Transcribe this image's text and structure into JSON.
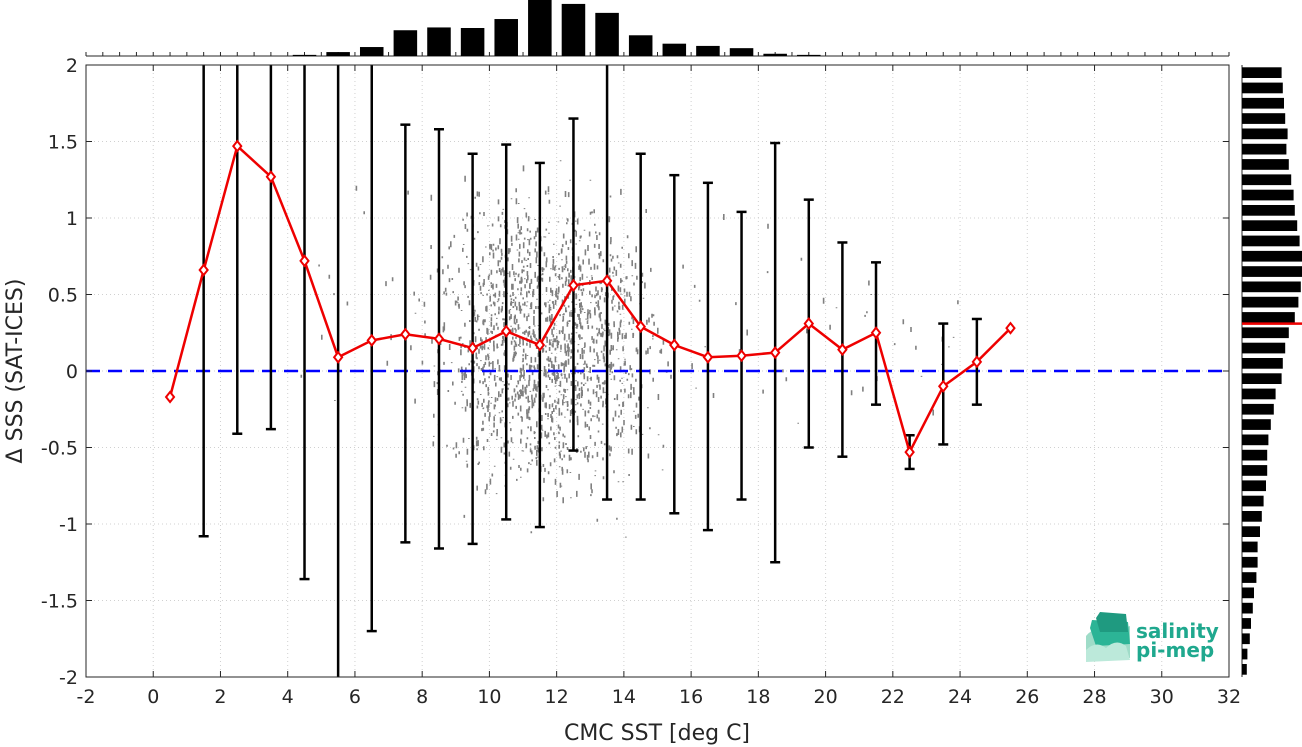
{
  "chart_data": {
    "type": "scatter",
    "xlabel": "CMC SST [deg C]",
    "ylabel": "Δ SSS (SAT-ICES)",
    "xlim": [
      -2,
      32
    ],
    "ylim": [
      -2,
      2
    ],
    "x_ticks": [
      -2,
      0,
      2,
      4,
      6,
      8,
      10,
      12,
      14,
      16,
      18,
      20,
      22,
      24,
      26,
      28,
      30,
      32
    ],
    "y_ticks": [
      -2,
      -1.5,
      -1,
      -0.5,
      0,
      0.5,
      1,
      1.5,
      2
    ],
    "grid": true,
    "reference_line": {
      "y": 0,
      "color": "#0000ff",
      "style": "dashed"
    },
    "series": [
      {
        "kind": "binned-mean-with-errorbars",
        "color": "#ee0000",
        "x": [
          0.5,
          1.5,
          2.5,
          3.5,
          4.5,
          5.5,
          6.5,
          7.5,
          8.5,
          9.5,
          10.5,
          11.5,
          12.5,
          13.5,
          14.5,
          15.5,
          16.5,
          17.5,
          18.5,
          19.5,
          20.5,
          21.5,
          22.5,
          23.5,
          24.5,
          25.5
        ],
        "y": [
          -0.17,
          0.66,
          1.47,
          1.27,
          0.72,
          0.09,
          0.2,
          0.24,
          0.21,
          0.15,
          0.26,
          0.17,
          0.56,
          0.59,
          0.29,
          0.17,
          0.09,
          0.1,
          0.12,
          0.31,
          0.14,
          0.25,
          -0.53,
          -0.1,
          0.06,
          0.28
        ],
        "err_low": [
          null,
          -1.08,
          -0.41,
          -0.38,
          -1.36,
          -2.0,
          -1.7,
          -1.12,
          -1.16,
          -1.13,
          -0.97,
          -1.02,
          -0.52,
          -0.84,
          -0.84,
          -0.93,
          -1.04,
          -0.84,
          -1.25,
          -0.5,
          -0.56,
          -0.22,
          -0.64,
          -0.48,
          -0.22,
          null
        ],
        "err_high": [
          null,
          2.0,
          2.0,
          2.0,
          2.0,
          2.0,
          2.0,
          1.61,
          1.58,
          1.42,
          1.48,
          1.36,
          1.65,
          2.0,
          1.42,
          1.28,
          1.23,
          1.04,
          1.49,
          1.12,
          0.84,
          0.71,
          -0.42,
          0.31,
          0.34,
          null
        ]
      }
    ],
    "top_histogram": {
      "bin_centers": [
        4.5,
        5.5,
        6.5,
        7.5,
        8.5,
        9.5,
        10.5,
        11.5,
        12.5,
        13.5,
        14.5,
        15.5,
        16.5,
        17.5,
        18.5,
        19.5
      ],
      "relative_counts": [
        0.02,
        0.07,
        0.16,
        0.46,
        0.51,
        0.5,
        0.66,
        1.0,
        0.93,
        0.77,
        0.37,
        0.22,
        0.18,
        0.14,
        0.04,
        0.02
      ]
    },
    "right_histogram": {
      "bin_edges_start": -2.0,
      "bin_width": 0.1,
      "relative_counts": [
        0.08,
        0.09,
        0.13,
        0.15,
        0.18,
        0.2,
        0.24,
        0.26,
        0.26,
        0.3,
        0.33,
        0.36,
        0.4,
        0.42,
        0.42,
        0.44,
        0.48,
        0.53,
        0.56,
        0.66,
        0.68,
        0.72,
        0.78,
        0.88,
        0.94,
        0.98,
        1.0,
        1.0,
        0.96,
        0.92,
        0.88,
        0.86,
        0.82,
        0.78,
        0.74,
        0.76,
        0.72,
        0.7,
        0.68,
        0.66
      ],
      "mean_line": {
        "y": 0.31,
        "color": "#ee0000"
      }
    },
    "scatter_cloud": {
      "color": "#808080",
      "core_x_range": [
        6,
        18.5
      ],
      "y_range": [
        -2,
        2
      ]
    }
  },
  "logo": {
    "line1": "salinity",
    "line2": "pi-mep",
    "color": "#1fa88e"
  }
}
